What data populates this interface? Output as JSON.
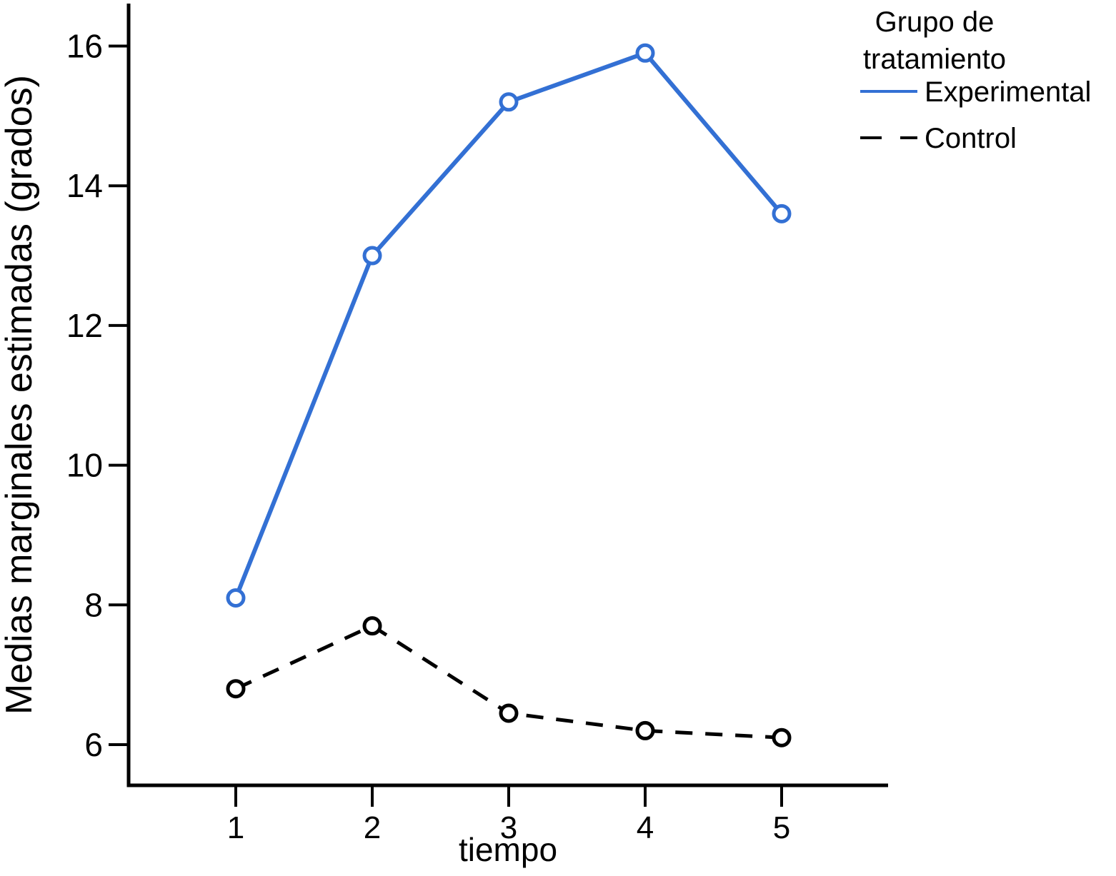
{
  "chart_data": {
    "type": "line",
    "title": "",
    "xlabel": "tiempo",
    "ylabel": "Medias marginales estimadas (grados)",
    "x": [
      1,
      2,
      3,
      4,
      5
    ],
    "x_tick_labels": [
      "1",
      "2",
      "3",
      "4",
      "5"
    ],
    "y_ticks": [
      6,
      8,
      10,
      12,
      14,
      16
    ],
    "y_tick_labels": [
      "6",
      "8",
      "10",
      "12",
      "14",
      "16"
    ],
    "xlim": [
      0.2,
      5.8
    ],
    "ylim": [
      5.4,
      16.6
    ],
    "grid": false,
    "series": [
      {
        "name": "Experimental",
        "style": "solid",
        "marker": "open-circle",
        "values": [
          8.1,
          13.0,
          15.2,
          15.9,
          13.6
        ]
      },
      {
        "name": "Control",
        "style": "dashed",
        "marker": "open-circle",
        "values": [
          6.8,
          7.7,
          6.45,
          6.2,
          6.1
        ]
      }
    ],
    "legend": {
      "position": "top-right",
      "title": "Grupo de tratamiento",
      "title_lines": [
        "Grupo de",
        "tratamiento"
      ],
      "entries": [
        {
          "label": "Experimental",
          "line_style": "solid"
        },
        {
          "label": "Control",
          "line_style": "dashed"
        }
      ]
    },
    "colors": {
      "experimental": "#3370D4",
      "control": "#000000",
      "axis": "#000000",
      "background": "#FFFFFF"
    }
  }
}
